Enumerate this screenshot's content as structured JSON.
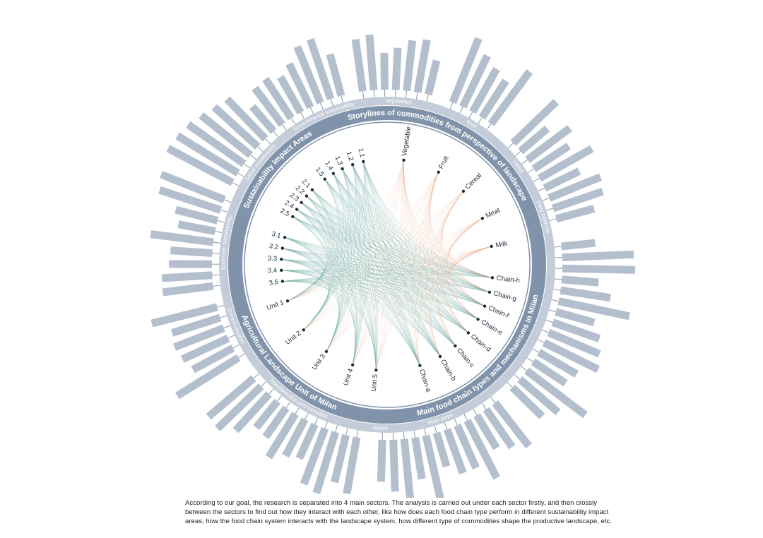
{
  "ring_titles": [
    "Storylines of commodities from perspective of landscape",
    "Main food chain types and mechanisms in Milan",
    "Agricultural Landscape Unit of Milan",
    "Sustainability Impact Areas"
  ],
  "outer_labels": [
    "Vegetables",
    "Fruit",
    "Cereal",
    "Dairy products",
    "Actors",
    "Main steps",
    "Transformation and formation",
    "Current situation",
    "Economic sustainability",
    "Social sustainability",
    "Environmental sustainability"
  ],
  "nodes": {
    "commodities": [
      "Vegetable",
      "Fruit",
      "Cereal",
      "Meat",
      "Milk"
    ],
    "chains": [
      "Chain-h",
      "Chain-g",
      "Chain-f",
      "Chain-e",
      "Chain-d",
      "Chain-c",
      "Chain-b",
      "Chain-a"
    ],
    "units": [
      "Unit 5",
      "Unit 4",
      "Unit 3",
      "Unit 2",
      "Unit 1"
    ],
    "impacts": [
      "3.5",
      "3.4",
      "3.3",
      "3.2",
      "3.1",
      "2.5",
      "2.4",
      "2.3",
      "2.2",
      "2.1",
      "1.5",
      "1.4",
      "1.3",
      "1.2",
      "1.1"
    ]
  },
  "caption": [
    "According to our goal, the research is separated into 4 main sectors. The analysis is carried out under each sector firstly, and then crossly",
    "between the sectors to find out how they interact with each other, like how does each food chain type perform in different sustainability impact",
    "areas, how the food chain system interacts with the landscape system, how different type of commodities shape the productive landscape, etc."
  ]
}
